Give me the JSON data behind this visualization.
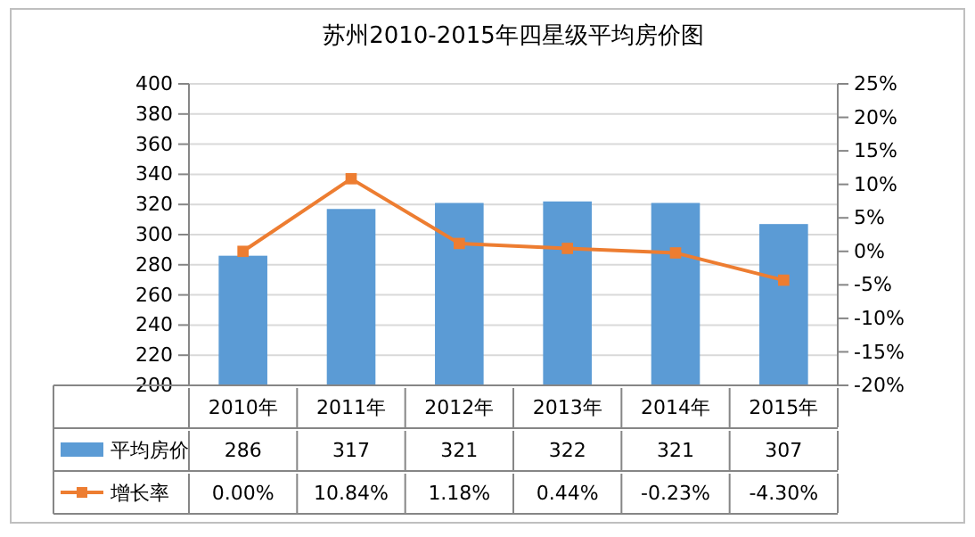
{
  "chart_data": {
    "type": "bar",
    "title": "苏州2010-2015年四星级平均房价图",
    "categories": [
      "2010年",
      "2011年",
      "2012年",
      "2013年",
      "2014年",
      "2015年"
    ],
    "series": [
      {
        "name": "平均房价",
        "type": "bar",
        "color": "#5b9bd5",
        "values": [
          286,
          317,
          321,
          322,
          321,
          307
        ],
        "value_labels": [
          "286",
          "317",
          "321",
          "322",
          "321",
          "307"
        ]
      },
      {
        "name": "增长率",
        "type": "line",
        "axis": "y2",
        "color": "#ed7d31",
        "marker": "square",
        "values": [
          0,
          10.84,
          1.18,
          0.44,
          -0.23,
          -4.3
        ],
        "value_labels": [
          "0.00%",
          "10.84%",
          "1.18%",
          "0.44%",
          "-0.23%",
          "-4.30%"
        ]
      }
    ],
    "ylim": [
      200,
      400
    ],
    "yticks": [
      200,
      220,
      240,
      260,
      280,
      300,
      320,
      340,
      360,
      380,
      400
    ],
    "y2lim": [
      -20,
      25
    ],
    "y2ticks": [
      {
        "value": -20,
        "label": "-20%"
      },
      {
        "value": -15,
        "label": "-15%"
      },
      {
        "value": -10,
        "label": "-10%"
      },
      {
        "value": -5,
        "label": "-5%"
      },
      {
        "value": 0,
        "label": "0%"
      },
      {
        "value": 5,
        "label": "5%"
      },
      {
        "value": 10,
        "label": "10%"
      },
      {
        "value": 15,
        "label": "15%"
      },
      {
        "value": 20,
        "label": "20%"
      },
      {
        "value": 25,
        "label": "25%"
      }
    ],
    "grid": "y",
    "legend": "bottom"
  }
}
